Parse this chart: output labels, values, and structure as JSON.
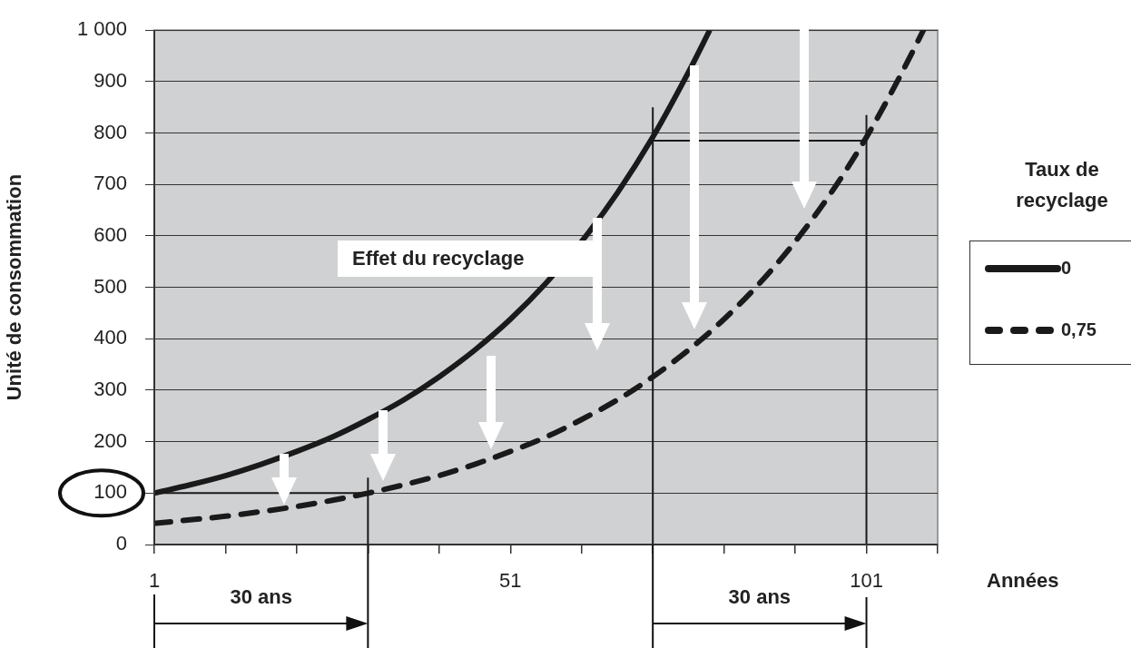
{
  "chart_data": {
    "type": "line",
    "ylabel": "Unité de consommation",
    "xlabel": "Années",
    "legend_title": "Taux de recyclage",
    "legend": "right",
    "grid": "y",
    "marker": "none",
    "xlim": [
      1,
      111
    ],
    "xticks": [
      1,
      {
        "value": 11,
        "label": null
      },
      {
        "value": 21,
        "label": null
      },
      {
        "value": 31,
        "label": null
      },
      {
        "value": 41,
        "label": null
      },
      51,
      {
        "value": 61,
        "label": null
      },
      {
        "value": 71,
        "label": null
      },
      {
        "value": 81,
        "label": null
      },
      {
        "value": 91,
        "label": null
      },
      101,
      {
        "value": 111,
        "label": null
      }
    ],
    "ylim": [
      0,
      1000
    ],
    "yticks": [
      0,
      100,
      200,
      300,
      400,
      500,
      600,
      700,
      800,
      900,
      {
        "value": 1000,
        "label": "1 000"
      }
    ],
    "annotations": [
      "Effet du recyclage",
      "30 ans",
      "30 ans"
    ],
    "series": [
      {
        "name": "0",
        "color": "#1a1a1a",
        "line_style": "solid",
        "x": [
          1,
          6,
          11,
          16,
          21,
          26,
          31,
          36,
          41,
          46,
          51,
          56,
          61,
          66,
          71,
          76,
          79
        ],
        "values": [
          100,
          116,
          134,
          156,
          181,
          209,
          243,
          281,
          326,
          378,
          438,
          508,
          589,
          683,
          792,
          918,
          1000
        ]
      },
      {
        "name": "0,75",
        "color": "#1a1a1a",
        "line_style": "dashed",
        "x": [
          1,
          6,
          11,
          16,
          21,
          26,
          31,
          36,
          41,
          46,
          51,
          56,
          61,
          66,
          71,
          76,
          81,
          86,
          91,
          96,
          101,
          106,
          109
        ],
        "values": [
          41,
          48,
          55,
          64,
          74,
          86,
          100,
          116,
          134,
          156,
          181,
          209,
          243,
          281,
          326,
          378,
          438,
          508,
          589,
          683,
          792,
          918,
          1000
        ]
      },
      {
        "color": "#1a1a1a",
        "line_style": "solid",
        "x": [
          1,
          31
        ],
        "values": [
          100,
          100
        ]
      },
      {
        "color": "#1a1a1a",
        "line_style": "solid",
        "x": [
          71,
          101
        ],
        "values": [
          785,
          785
        ]
      },
      {
        "color": "#1a1a1a",
        "line_style": "solid",
        "x": [
          31,
          31
        ],
        "values": [
          0,
          130
        ]
      },
      {
        "color": "#1a1a1a",
        "line_style": "solid",
        "x": [
          71,
          71
        ],
        "values": [
          0,
          850
        ]
      },
      {
        "color": "#1a1a1a",
        "line_style": "solid",
        "x": [
          101,
          101
        ],
        "values": [
          0,
          835
        ]
      }
    ]
  }
}
